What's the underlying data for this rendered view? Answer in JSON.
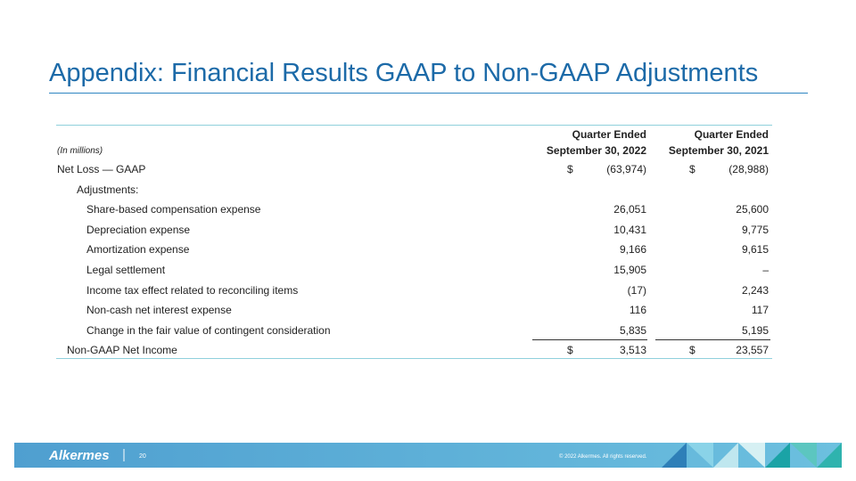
{
  "title": "Appendix: Financial Results GAAP to Non-GAAP Adjustments",
  "table": {
    "unit_note": "(In millions)",
    "columns": [
      {
        "line1": "Quarter Ended",
        "line2": "September 30, 2022"
      },
      {
        "line1": "Quarter Ended",
        "line2": "September 30, 2021"
      }
    ],
    "net_loss": {
      "label": "Net Loss — GAAP",
      "cells": [
        {
          "currency": "$",
          "amount": "(63,974)"
        },
        {
          "currency": "$",
          "amount": "(28,988)"
        }
      ]
    },
    "adjustments": {
      "label": "Adjustments:",
      "items": [
        {
          "label": "Share-based compensation expense",
          "cells": [
            "26,051",
            "25,600"
          ]
        },
        {
          "label": "Depreciation expense",
          "cells": [
            "10,431",
            "9,775"
          ]
        },
        {
          "label": "Amortization expense",
          "cells": [
            "9,166",
            "9,615"
          ]
        },
        {
          "label": "Legal settlement",
          "cells": [
            "15,905",
            "–"
          ]
        },
        {
          "label": "Income tax effect related to reconciling items",
          "cells": [
            "(17)",
            "2,243"
          ]
        },
        {
          "label": "Non-cash net interest expense",
          "cells": [
            "116",
            "117"
          ]
        },
        {
          "label": "Change in the fair value of contingent consideration",
          "cells": [
            "5,835",
            "5,195"
          ]
        }
      ]
    },
    "non_gaap": {
      "label": "Non-GAAP Net Income",
      "cells": [
        {
          "currency": "$",
          "amount": "3,513"
        },
        {
          "currency": "$",
          "amount": "23,557"
        }
      ]
    }
  },
  "footer": {
    "logo": "Alkermes",
    "page": "20",
    "copyright": "© 2022 Alkermes. All rights reserved."
  }
}
